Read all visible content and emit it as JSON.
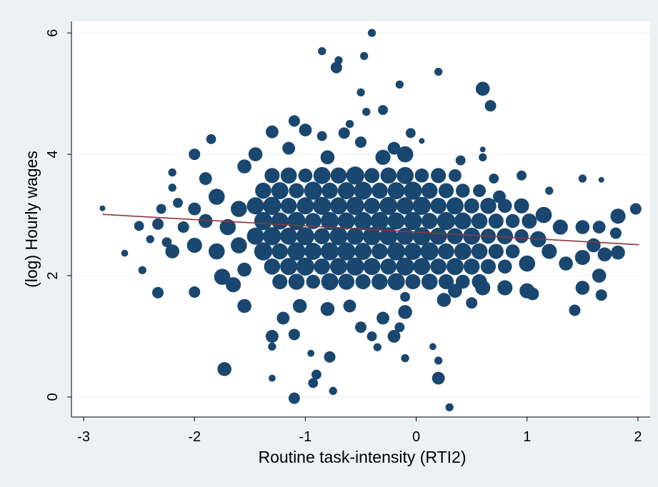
{
  "chart_data": {
    "type": "scatter",
    "x_label": "Routine task-intensity (RTI2)",
    "y_label": "(log) Hourly wages",
    "xlim": [
      -3.11,
      2.11
    ],
    "ylim": [
      -0.33,
      6.19
    ],
    "xticks": [
      -3,
      -2,
      -1,
      0,
      1,
      2
    ],
    "yticks": [
      0,
      2,
      4,
      6
    ],
    "grid": true,
    "series": [
      {
        "type": "scatter",
        "color": "#1a476f",
        "x": [
          -1.3,
          -1.15,
          -1.0,
          -0.85,
          -0.7,
          -0.55,
          -0.4,
          -0.25,
          -0.1,
          0.05,
          0.2,
          0.35,
          -1.38,
          -1.23,
          -1.08,
          -0.93,
          -0.78,
          -0.63,
          -0.48,
          -0.33,
          -0.18,
          -0.03,
          0.12,
          0.27,
          0.42,
          0.57,
          -1.45,
          -1.3,
          -1.15,
          -1.0,
          -0.85,
          -0.7,
          -0.55,
          -0.4,
          -0.25,
          -0.1,
          0.05,
          0.2,
          0.35,
          0.5,
          0.65,
          0.8,
          0.95,
          -1.38,
          -1.23,
          -1.08,
          -0.93,
          -0.78,
          -0.63,
          -0.48,
          -0.33,
          -0.18,
          -0.03,
          0.12,
          0.27,
          0.42,
          0.57,
          0.72,
          0.87,
          1.02,
          -1.45,
          -1.3,
          -1.15,
          -1.0,
          -0.85,
          -0.7,
          -0.55,
          -0.4,
          -0.25,
          -0.1,
          0.05,
          0.2,
          0.35,
          0.5,
          0.65,
          0.8,
          0.95,
          -1.38,
          -1.23,
          -1.08,
          -0.93,
          -0.78,
          -0.63,
          -0.48,
          -0.33,
          -0.18,
          -0.03,
          0.12,
          0.27,
          0.42,
          0.57,
          0.72,
          0.87,
          -1.3,
          -1.15,
          -1.0,
          -0.85,
          -0.7,
          -0.55,
          -0.4,
          -0.25,
          -0.1,
          0.05,
          0.2,
          0.35,
          0.5,
          0.65,
          0.8,
          -1.23,
          -1.08,
          -0.93,
          -0.78,
          -0.63,
          -0.48,
          -0.33,
          -0.18,
          -0.03,
          0.12,
          0.27,
          0.42,
          0.57,
          -2.33,
          -2.33,
          -2.5,
          -2.63,
          -2.47,
          -2.2,
          -2.0,
          -2.0,
          -2.0,
          -1.9,
          -1.8,
          -1.8,
          -1.75,
          -1.7,
          -1.6,
          -1.6,
          -1.55,
          -1.55,
          -2.15,
          -2.1,
          -2.25,
          -2.3,
          -2.4,
          -1.85,
          -2.0,
          -1.9,
          -1.65,
          -1.55,
          -1.73,
          -2.83,
          -2.2,
          -2.2,
          1.0,
          1.1,
          1.15,
          1.2,
          1.3,
          1.35,
          1.0,
          0.8,
          0.6,
          1.05,
          1.5,
          1.5,
          1.5,
          1.6,
          1.65,
          1.65,
          1.7,
          1.82,
          1.82,
          1.8,
          1.67,
          1.43,
          1.98,
          1.5,
          1.67,
          0.95,
          0.75,
          0.7,
          0.6,
          1.2,
          -0.4,
          -0.85,
          -0.7,
          -0.47,
          -0.72,
          0.2,
          0.6,
          0.67,
          -0.15,
          -0.5,
          -0.3,
          -0.45,
          0.05,
          0.6,
          -1.1,
          -1.3,
          -1.0,
          -0.85,
          -0.65,
          -0.5,
          -0.2,
          -0.1,
          -1.15,
          -1.45,
          -0.8,
          -0.3,
          -0.05,
          0.4,
          -0.6,
          -1.3,
          -1.1,
          -1.3,
          -0.9,
          -0.78,
          -0.75,
          -1.1,
          -0.93,
          -0.95,
          -1.3,
          0.2,
          0.2,
          0.3,
          0.15,
          -0.1,
          -0.35,
          -0.4,
          -0.2,
          -0.15,
          -0.5,
          -0.8,
          -0.6,
          -1.2,
          -0.3,
          -0.1,
          0.25,
          0.5,
          -1.05,
          -0.1,
          0.35
        ],
        "values": [
          3.65,
          3.65,
          3.65,
          3.65,
          3.65,
          3.65,
          3.65,
          3.65,
          3.65,
          3.65,
          3.65,
          3.65,
          3.4,
          3.4,
          3.4,
          3.4,
          3.4,
          3.4,
          3.4,
          3.4,
          3.4,
          3.4,
          3.4,
          3.4,
          3.4,
          3.4,
          3.15,
          3.15,
          3.15,
          3.15,
          3.15,
          3.15,
          3.15,
          3.15,
          3.15,
          3.15,
          3.15,
          3.15,
          3.15,
          3.15,
          3.15,
          3.15,
          3.15,
          2.9,
          2.9,
          2.9,
          2.9,
          2.9,
          2.9,
          2.9,
          2.9,
          2.9,
          2.9,
          2.9,
          2.9,
          2.9,
          2.9,
          2.9,
          2.9,
          2.9,
          2.65,
          2.65,
          2.65,
          2.65,
          2.65,
          2.65,
          2.65,
          2.65,
          2.65,
          2.65,
          2.65,
          2.65,
          2.65,
          2.65,
          2.65,
          2.65,
          2.65,
          2.4,
          2.4,
          2.4,
          2.4,
          2.4,
          2.4,
          2.4,
          2.4,
          2.4,
          2.4,
          2.4,
          2.4,
          2.4,
          2.4,
          2.4,
          2.4,
          2.15,
          2.15,
          2.15,
          2.15,
          2.15,
          2.15,
          2.15,
          2.15,
          2.15,
          2.15,
          2.15,
          2.15,
          2.15,
          2.15,
          2.15,
          1.9,
          1.9,
          1.9,
          1.9,
          1.9,
          1.9,
          1.9,
          1.9,
          1.9,
          1.9,
          1.9,
          1.9,
          1.9,
          2.85,
          1.72,
          2.82,
          2.37,
          2.09,
          2.4,
          2.5,
          3.1,
          4.0,
          3.6,
          3.3,
          2.4,
          1.98,
          2.8,
          3.1,
          2.5,
          3.8,
          2.1,
          3.2,
          2.8,
          2.55,
          3.1,
          2.6,
          4.25,
          1.73,
          2.9,
          1.85,
          1.5,
          0.46,
          3.11,
          3.45,
          3.7,
          2.2,
          2.6,
          3.0,
          2.4,
          2.8,
          2.2,
          1.75,
          1.8,
          1.8,
          1.7,
          2.3,
          2.8,
          1.8,
          2.5,
          2.0,
          2.8,
          2.35,
          2.98,
          2.38,
          2.7,
          1.68,
          1.43,
          3.1,
          3.6,
          3.58,
          3.65,
          3.3,
          3.6,
          3.95,
          3.4,
          6.0,
          5.7,
          5.55,
          5.62,
          5.43,
          5.36,
          5.08,
          4.8,
          5.15,
          5.02,
          4.73,
          4.7,
          4.22,
          4.08,
          4.55,
          4.37,
          4.4,
          4.3,
          4.35,
          4.2,
          4.1,
          4.0,
          4.1,
          4.0,
          3.95,
          3.95,
          4.35,
          3.9,
          4.5,
          1.0,
          1.03,
          0.83,
          0.37,
          0.66,
          0.1,
          -0.02,
          0.23,
          0.72,
          0.31,
          0.31,
          0.6,
          -0.17,
          0.83,
          0.64,
          0.82,
          1.0,
          1.0,
          1.15,
          1.15,
          1.45,
          1.5,
          1.3,
          1.3,
          1.4,
          1.6,
          1.55,
          1.5,
          1.65,
          1.75
        ],
        "sizes": [
          7,
          8,
          6,
          9,
          8,
          10,
          7,
          8,
          9,
          6,
          7,
          5,
          8,
          9,
          7,
          10,
          8,
          9,
          10,
          8,
          9,
          10,
          8,
          7,
          6,
          5,
          9,
          10,
          8,
          9,
          10,
          9,
          10,
          8,
          10,
          9,
          10,
          8,
          9,
          7,
          8,
          6,
          7,
          10,
          9,
          10,
          8,
          10,
          9,
          10,
          10,
          9,
          10,
          8,
          10,
          9,
          8,
          7,
          6,
          7,
          9,
          10,
          9,
          10,
          8,
          10,
          9,
          10,
          10,
          9,
          10,
          9,
          8,
          9,
          7,
          8,
          6,
          10,
          8,
          10,
          9,
          10,
          10,
          9,
          8,
          10,
          9,
          10,
          8,
          9,
          8,
          7,
          6,
          8,
          9,
          10,
          8,
          9,
          10,
          9,
          8,
          10,
          9,
          8,
          9,
          8,
          7,
          6,
          7,
          8,
          6,
          9,
          8,
          7,
          8,
          9,
          7,
          8,
          7,
          6,
          7,
          4,
          4,
          3,
          1.5,
          2,
          6,
          7,
          5,
          4,
          5,
          8,
          8,
          8,
          8,
          8,
          8,
          6,
          6,
          3,
          4,
          3,
          3,
          2,
          3,
          4,
          6,
          7,
          6,
          6,
          1,
          2,
          2,
          8,
          8,
          8,
          7,
          7,
          6,
          7,
          7,
          7,
          5,
          7,
          6,
          6,
          6,
          6,
          5,
          6,
          7,
          6,
          4,
          4,
          4,
          4,
          2,
          1,
          3,
          5,
          3,
          2,
          2,
          2,
          2,
          2,
          2,
          4,
          2,
          6,
          4,
          2,
          2,
          3,
          2,
          1,
          1,
          4,
          5,
          5,
          3,
          4,
          4,
          5,
          8,
          5,
          6,
          6,
          7,
          3,
          3,
          2,
          5,
          4,
          2,
          3,
          4,
          2,
          4,
          3,
          1.5,
          1.5,
          5,
          2,
          2,
          1.5,
          2,
          2,
          3,
          5,
          3,
          4,
          6,
          5,
          5,
          5,
          6,
          6,
          4,
          6,
          3,
          6
        ]
      },
      {
        "type": "line",
        "color": "#90353b",
        "x": [
          -2.83,
          2.01
        ],
        "values": [
          3.01,
          2.51
        ]
      }
    ]
  }
}
